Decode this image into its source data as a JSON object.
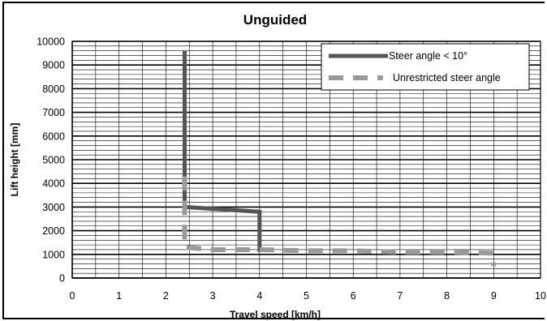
{
  "chart_data": {
    "type": "line",
    "title": "Unguided",
    "xlabel": "Travel speed [km/h]",
    "ylabel": "Lift height [mm]",
    "xlim": [
      0,
      10
    ],
    "ylim": [
      0,
      10000
    ],
    "x_ticks": [
      "0",
      "1",
      "2",
      "3",
      "4",
      "5",
      "6",
      "7",
      "8",
      "9",
      "10"
    ],
    "y_ticks": [
      "0",
      "1000",
      "2000",
      "3000",
      "4000",
      "5000",
      "6000",
      "7000",
      "8000",
      "9000",
      "10000"
    ],
    "grid": "major and minor horizontal, vertical at 0.5 km/h",
    "legend_position": "top-right",
    "series": [
      {
        "name": "Steer angle < 10°",
        "color": "#555555",
        "style": "solid",
        "points": [
          [
            2.4,
            9600
          ],
          [
            2.4,
            3000
          ],
          [
            4.0,
            2800
          ],
          [
            4.0,
            1100
          ]
        ]
      },
      {
        "name": "Unrestricted steer angle",
        "color": "#9a9a9a",
        "style": "dashed",
        "points": [
          [
            2.4,
            4300
          ],
          [
            2.4,
            1300
          ],
          [
            3.0,
            1200
          ],
          [
            4.0,
            1200
          ],
          [
            5.0,
            1150
          ],
          [
            6.0,
            1150
          ],
          [
            7.0,
            1100
          ],
          [
            8.0,
            1100
          ],
          [
            9.0,
            1050
          ],
          [
            9.0,
            500
          ]
        ]
      }
    ]
  }
}
